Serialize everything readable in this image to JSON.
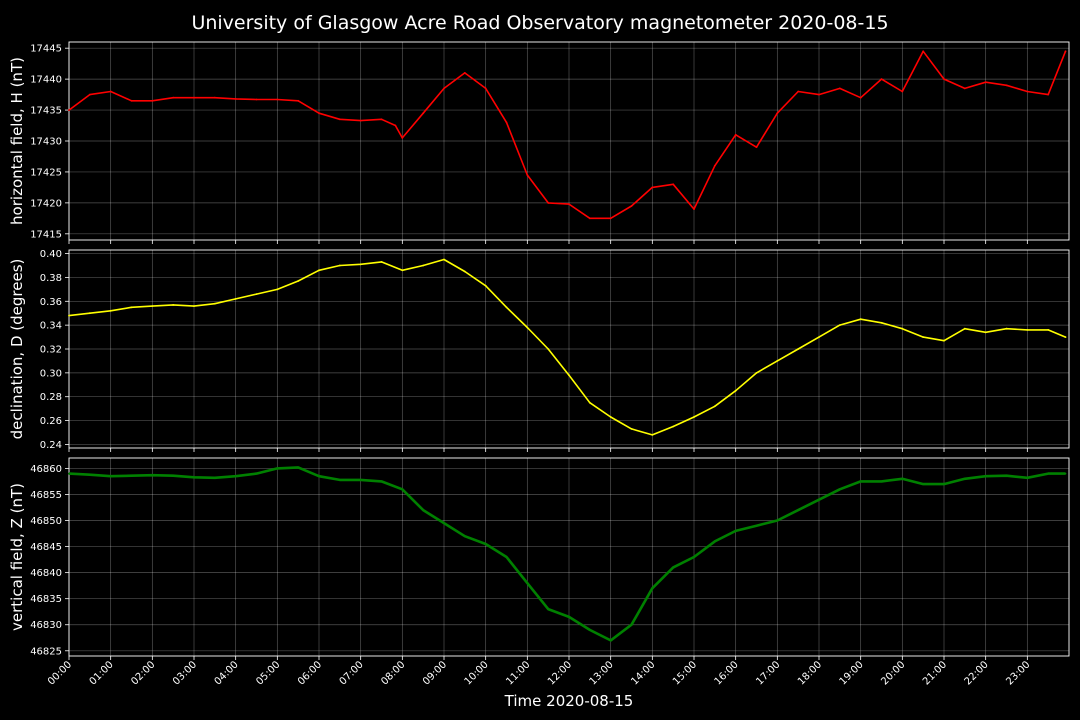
{
  "title": "University of Glasgow Acre Road Observatory magnetometer 2020-08-15",
  "chart_data": [
    {
      "type": "line",
      "ylabel": "horizontal field, H (nT)",
      "ylim": [
        17414,
        17446
      ],
      "yticks": [
        17415,
        17420,
        17425,
        17430,
        17435,
        17440,
        17445
      ],
      "color": "#ff0000",
      "x": [
        "00:00",
        "00:30",
        "01:00",
        "01:30",
        "02:00",
        "02:30",
        "03:00",
        "03:30",
        "04:00",
        "04:30",
        "05:00",
        "05:30",
        "06:00",
        "06:30",
        "07:00",
        "07:30",
        "07:50",
        "08:00",
        "08:30",
        "09:00",
        "09:30",
        "10:00",
        "10:30",
        "11:00",
        "11:30",
        "12:00",
        "12:30",
        "13:00",
        "13:30",
        "14:00",
        "14:30",
        "15:00",
        "15:30",
        "16:00",
        "16:30",
        "17:00",
        "17:30",
        "18:00",
        "18:30",
        "19:00",
        "19:30",
        "20:00",
        "20:30",
        "21:00",
        "21:30",
        "22:00",
        "22:30",
        "23:00",
        "23:30",
        "23:55"
      ],
      "values": [
        17435,
        17437.5,
        17438,
        17436.5,
        17436.5,
        17437,
        17437,
        17437,
        17436.8,
        17436.7,
        17436.7,
        17436.5,
        17434.5,
        17433.5,
        17433.3,
        17433.5,
        17432.5,
        17430.5,
        17434.5,
        17438.5,
        17441,
        17438.5,
        17433,
        17424.5,
        17420,
        17419.8,
        17417.5,
        17417.5,
        17419.5,
        17422.5,
        17423,
        17419,
        17426,
        17431,
        17429,
        17434.5,
        17438,
        17437.5,
        17438.5,
        17437,
        17440,
        17438,
        17444.5,
        17440,
        17438.5,
        17439.5,
        17439,
        17438,
        17437.5,
        17444.5
      ]
    },
    {
      "type": "line",
      "ylabel": "declination, D (degrees)",
      "ylim": [
        0.237,
        0.403
      ],
      "yticks": [
        0.24,
        0.26,
        0.28,
        0.3,
        0.32,
        0.34,
        0.36,
        0.38,
        0.4
      ],
      "yticks_labels": [
        "0.24",
        "0.26",
        "0.28",
        "0.30",
        "0.32",
        "0.34",
        "0.36",
        "0.38",
        "0.40"
      ],
      "color": "#ffff00",
      "x": [
        "00:00",
        "00:30",
        "01:00",
        "01:30",
        "02:00",
        "02:30",
        "03:00",
        "03:30",
        "04:00",
        "04:30",
        "05:00",
        "05:30",
        "06:00",
        "06:30",
        "07:00",
        "07:30",
        "08:00",
        "08:30",
        "09:00",
        "09:30",
        "10:00",
        "10:30",
        "11:00",
        "11:30",
        "12:00",
        "12:30",
        "13:00",
        "13:30",
        "14:00",
        "14:30",
        "15:00",
        "15:30",
        "16:00",
        "16:30",
        "17:00",
        "17:30",
        "18:00",
        "18:30",
        "19:00",
        "19:30",
        "20:00",
        "20:30",
        "21:00",
        "21:30",
        "22:00",
        "22:30",
        "23:00",
        "23:30",
        "23:55"
      ],
      "values": [
        0.348,
        0.35,
        0.352,
        0.355,
        0.356,
        0.357,
        0.356,
        0.358,
        0.362,
        0.366,
        0.37,
        0.377,
        0.386,
        0.39,
        0.391,
        0.393,
        0.386,
        0.39,
        0.395,
        0.385,
        0.373,
        0.355,
        0.338,
        0.32,
        0.298,
        0.275,
        0.263,
        0.253,
        0.248,
        0.255,
        0.263,
        0.272,
        0.285,
        0.3,
        0.31,
        0.32,
        0.33,
        0.34,
        0.345,
        0.342,
        0.337,
        0.33,
        0.327,
        0.337,
        0.334,
        0.337,
        0.336,
        0.336,
        0.33
      ]
    },
    {
      "type": "line",
      "ylabel": "vertical field, Z (nT)",
      "ylim": [
        46824,
        46862
      ],
      "yticks": [
        46825,
        46830,
        46835,
        46840,
        46845,
        46850,
        46855,
        46860
      ],
      "color": "#008000",
      "x": [
        "00:00",
        "00:30",
        "01:00",
        "01:30",
        "02:00",
        "02:30",
        "03:00",
        "03:30",
        "04:00",
        "04:30",
        "05:00",
        "05:30",
        "06:00",
        "06:30",
        "07:00",
        "07:30",
        "08:00",
        "08:30",
        "09:00",
        "09:30",
        "10:00",
        "10:30",
        "11:00",
        "11:30",
        "12:00",
        "12:30",
        "13:00",
        "13:30",
        "14:00",
        "14:30",
        "15:00",
        "15:30",
        "16:00",
        "16:30",
        "17:00",
        "17:30",
        "18:00",
        "18:30",
        "19:00",
        "19:30",
        "20:00",
        "20:30",
        "21:00",
        "21:30",
        "22:00",
        "22:30",
        "23:00",
        "23:30",
        "23:55"
      ],
      "values": [
        46859,
        46858.8,
        46858.5,
        46858.6,
        46858.7,
        46858.6,
        46858.3,
        46858.2,
        46858.5,
        46859,
        46860,
        46860.2,
        46858.5,
        46857.8,
        46857.8,
        46857.5,
        46856,
        46852,
        46849.5,
        46847,
        46845.5,
        46843,
        46838,
        46833,
        46831.5,
        46829,
        46827,
        46830,
        46837,
        46841,
        46843,
        46846,
        46848,
        46849,
        46850,
        46852,
        46854,
        46856,
        46857.5,
        46857.5,
        46858,
        46857,
        46857,
        46858,
        46858.5,
        46858.6,
        46858.2,
        46859,
        46859
      ]
    }
  ],
  "xticks": [
    "00:00",
    "01:00",
    "02:00",
    "03:00",
    "04:00",
    "05:00",
    "06:00",
    "07:00",
    "08:00",
    "09:00",
    "10:00",
    "11:00",
    "12:00",
    "13:00",
    "14:00",
    "15:00",
    "16:00",
    "17:00",
    "18:00",
    "19:00",
    "20:00",
    "21:00",
    "22:00",
    "23:00"
  ],
  "xlabel": "Time 2020-08-15",
  "x_range": [
    "00:00",
    "24:00"
  ],
  "grid": true,
  "background": "#000000"
}
